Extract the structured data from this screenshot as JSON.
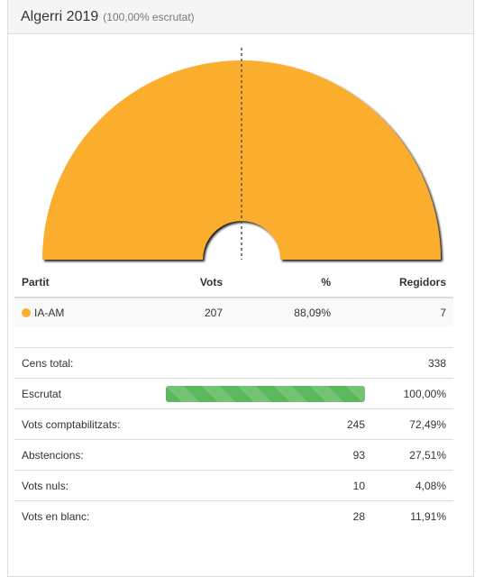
{
  "header": {
    "title": "Algerri 2019",
    "subtitle": "(100,00% escrutat)"
  },
  "hemicycle": {
    "seats": 7,
    "parties": [
      {
        "name": "IA-AM",
        "seats": 7,
        "color": "#fbae2f"
      }
    ]
  },
  "party_table": {
    "columns": {
      "party": "Partit",
      "votes": "Vots",
      "pct": "%",
      "seats": "Regidors"
    },
    "rows": [
      {
        "name": "IA-AM",
        "color": "#fbae2f",
        "votes": "207",
        "pct": "88,09%",
        "seats": "7"
      }
    ]
  },
  "summary": {
    "census": {
      "label": "Cens total:",
      "value": "338"
    },
    "counted": {
      "label": "Escrutat",
      "value": "100,00%",
      "progress": 1.0,
      "color": "#5cb85c"
    },
    "valid_votes": {
      "label": "Vots comptabilitzats:",
      "value": "245",
      "pct": "72,49%"
    },
    "abstentions": {
      "label": "Abstencions:",
      "value": "93",
      "pct": "27,51%"
    },
    "null_votes": {
      "label": "Vots nuls:",
      "value": "10",
      "pct": "4,08%"
    },
    "blank_votes": {
      "label": "Vots en blanc:",
      "value": "28",
      "pct": "11,91%"
    }
  }
}
